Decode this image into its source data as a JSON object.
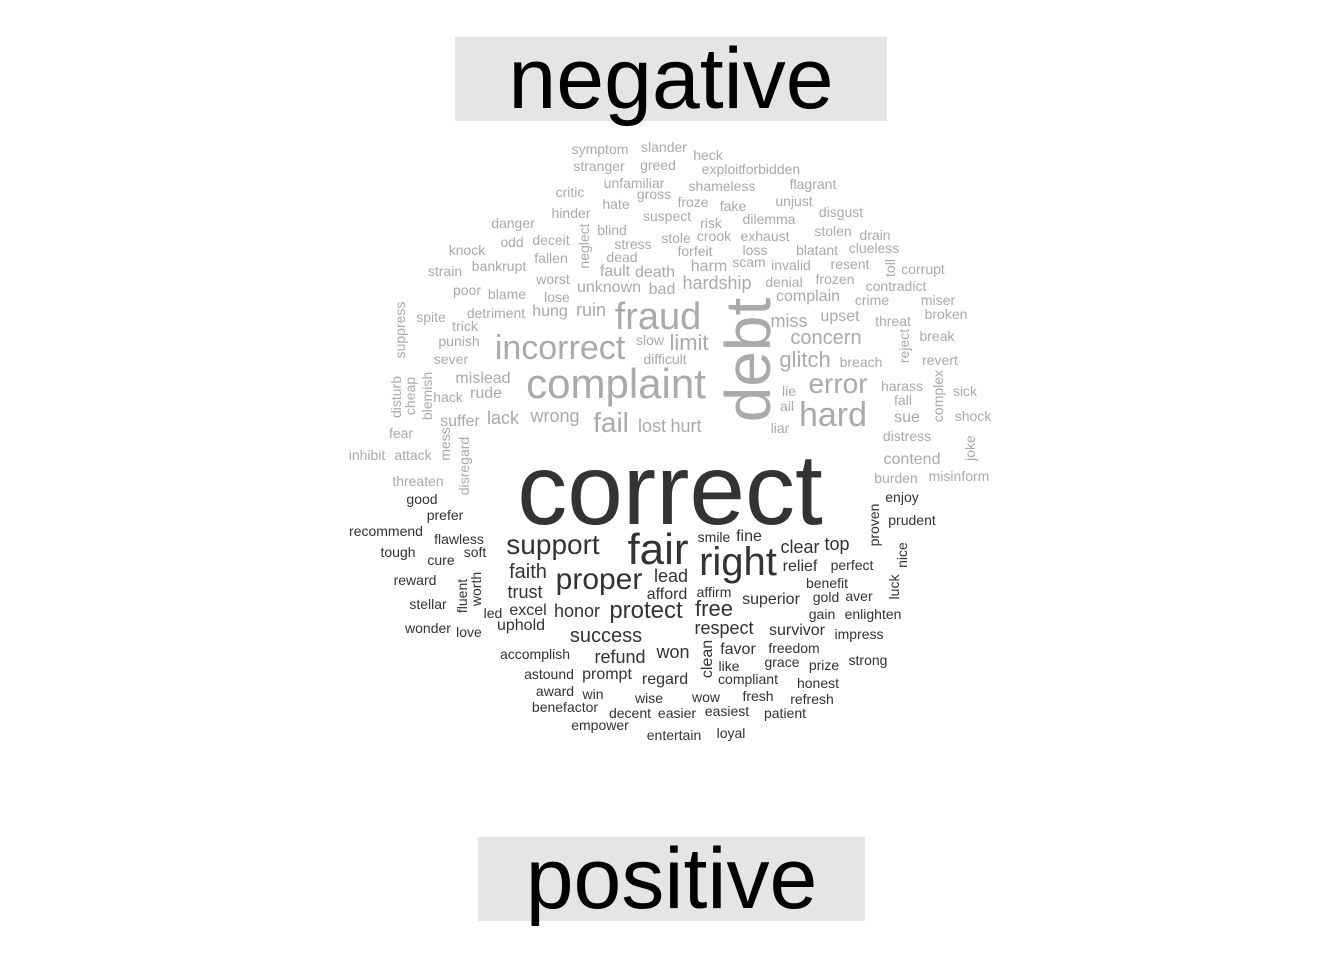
{
  "groups": {
    "negative": {
      "label": "negative",
      "color": "#aaaaaa"
    },
    "positive": {
      "label": "positive",
      "color": "#333333"
    }
  },
  "words": [
    {
      "text": "symptom",
      "group": "negative",
      "size": 1
    },
    {
      "text": "slander",
      "group": "negative",
      "size": 1
    },
    {
      "text": "heck",
      "group": "negative",
      "size": 1
    },
    {
      "text": "stranger",
      "group": "negative",
      "size": 1
    },
    {
      "text": "greed",
      "group": "negative",
      "size": 1
    },
    {
      "text": "exploit",
      "group": "negative",
      "size": 1
    },
    {
      "text": "forbidden",
      "group": "negative",
      "size": 1
    },
    {
      "text": "unfamiliar",
      "group": "negative",
      "size": 1
    },
    {
      "text": "shameless",
      "group": "negative",
      "size": 1
    },
    {
      "text": "flagrant",
      "group": "negative",
      "size": 1
    },
    {
      "text": "critic",
      "group": "negative",
      "size": 1
    },
    {
      "text": "gross",
      "group": "negative",
      "size": 1
    },
    {
      "text": "hate",
      "group": "negative",
      "size": 1
    },
    {
      "text": "froze",
      "group": "negative",
      "size": 1
    },
    {
      "text": "fake",
      "group": "negative",
      "size": 1
    },
    {
      "text": "unjust",
      "group": "negative",
      "size": 1
    },
    {
      "text": "hinder",
      "group": "negative",
      "size": 1
    },
    {
      "text": "suspect",
      "group": "negative",
      "size": 1
    },
    {
      "text": "disgust",
      "group": "negative",
      "size": 1
    },
    {
      "text": "danger",
      "group": "negative",
      "size": 1
    },
    {
      "text": "risk",
      "group": "negative",
      "size": 1
    },
    {
      "text": "dilemma",
      "group": "negative",
      "size": 1
    },
    {
      "text": "blind",
      "group": "negative",
      "size": 1
    },
    {
      "text": "stolen",
      "group": "negative",
      "size": 1
    },
    {
      "text": "odd",
      "group": "negative",
      "size": 1
    },
    {
      "text": "deceit",
      "group": "negative",
      "size": 1
    },
    {
      "text": "neglect",
      "group": "negative",
      "size": 1,
      "v": true
    },
    {
      "text": "stole",
      "group": "negative",
      "size": 1
    },
    {
      "text": "crook",
      "group": "negative",
      "size": 1
    },
    {
      "text": "exhaust",
      "group": "negative",
      "size": 1
    },
    {
      "text": "drain",
      "group": "negative",
      "size": 1
    },
    {
      "text": "knock",
      "group": "negative",
      "size": 1
    },
    {
      "text": "stress",
      "group": "negative",
      "size": 1
    },
    {
      "text": "forfeit",
      "group": "negative",
      "size": 1
    },
    {
      "text": "loss",
      "group": "negative",
      "size": 1
    },
    {
      "text": "blatant",
      "group": "negative",
      "size": 1
    },
    {
      "text": "clueless",
      "group": "negative",
      "size": 1
    },
    {
      "text": "fallen",
      "group": "negative",
      "size": 1
    },
    {
      "text": "dead",
      "group": "negative",
      "size": 1
    },
    {
      "text": "scam",
      "group": "negative",
      "size": 1
    },
    {
      "text": "invalid",
      "group": "negative",
      "size": 1
    },
    {
      "text": "resent",
      "group": "negative",
      "size": 1
    },
    {
      "text": "toll",
      "group": "negative",
      "size": 1,
      "v": true
    },
    {
      "text": "corrupt",
      "group": "negative",
      "size": 1
    },
    {
      "text": "bankrupt",
      "group": "negative",
      "size": 1
    },
    {
      "text": "harm",
      "group": "negative",
      "size": 2
    },
    {
      "text": "strain",
      "group": "negative",
      "size": 1
    },
    {
      "text": "fault",
      "group": "negative",
      "size": 2
    },
    {
      "text": "death",
      "group": "negative",
      "size": 2
    },
    {
      "text": "worst",
      "group": "negative",
      "size": 1
    },
    {
      "text": "denial",
      "group": "negative",
      "size": 1
    },
    {
      "text": "frozen",
      "group": "negative",
      "size": 1
    },
    {
      "text": "unknown",
      "group": "negative",
      "size": 2
    },
    {
      "text": "hardship",
      "group": "negative",
      "size": 2
    },
    {
      "text": "contradict",
      "group": "negative",
      "size": 1
    },
    {
      "text": "poor",
      "group": "negative",
      "size": 1
    },
    {
      "text": "blame",
      "group": "negative",
      "size": 1
    },
    {
      "text": "bad",
      "group": "negative",
      "size": 2
    },
    {
      "text": "lose",
      "group": "negative",
      "size": 1
    },
    {
      "text": "complain",
      "group": "negative",
      "size": 2
    },
    {
      "text": "crime",
      "group": "negative",
      "size": 1
    },
    {
      "text": "miser",
      "group": "negative",
      "size": 1
    },
    {
      "text": "suppress",
      "group": "negative",
      "size": 1,
      "v": true
    },
    {
      "text": "detriment",
      "group": "negative",
      "size": 1
    },
    {
      "text": "hung",
      "group": "negative",
      "size": 2
    },
    {
      "text": "ruin",
      "group": "negative",
      "size": 2
    },
    {
      "text": "fraud",
      "group": "negative",
      "size": 5
    },
    {
      "text": "broken",
      "group": "negative",
      "size": 1
    },
    {
      "text": "spite",
      "group": "negative",
      "size": 1
    },
    {
      "text": "trick",
      "group": "negative",
      "size": 1
    },
    {
      "text": "upset",
      "group": "negative",
      "size": 2
    },
    {
      "text": "threat",
      "group": "negative",
      "size": 1
    },
    {
      "text": "miss",
      "group": "negative",
      "size": 2
    },
    {
      "text": "debt",
      "group": "negative",
      "size": 7,
      "v": true
    },
    {
      "text": "break",
      "group": "negative",
      "size": 1
    },
    {
      "text": "punish",
      "group": "negative",
      "size": 1
    },
    {
      "text": "incorrect",
      "group": "negative",
      "size": 5
    },
    {
      "text": "concern",
      "group": "negative",
      "size": 3
    },
    {
      "text": "reject",
      "group": "negative",
      "size": 1,
      "v": true
    },
    {
      "text": "slow",
      "group": "negative",
      "size": 1
    },
    {
      "text": "limit",
      "group": "negative",
      "size": 3
    },
    {
      "text": "sever",
      "group": "negative",
      "size": 1
    },
    {
      "text": "difficult",
      "group": "negative",
      "size": 1
    },
    {
      "text": "glitch",
      "group": "negative",
      "size": 3
    },
    {
      "text": "breach",
      "group": "negative",
      "size": 1
    },
    {
      "text": "revert",
      "group": "negative",
      "size": 1
    },
    {
      "text": "blemish",
      "group": "negative",
      "size": 1,
      "v": true
    },
    {
      "text": "complaint",
      "group": "negative",
      "size": 6
    },
    {
      "text": "mislead",
      "group": "negative",
      "size": 1
    },
    {
      "text": "complex",
      "group": "negative",
      "size": 1,
      "v": true
    },
    {
      "text": "disturb",
      "group": "negative",
      "size": 1,
      "v": true
    },
    {
      "text": "cheap",
      "group": "negative",
      "size": 1,
      "v": true
    },
    {
      "text": "error",
      "group": "negative",
      "size": 4
    },
    {
      "text": "harass",
      "group": "negative",
      "size": 1
    },
    {
      "text": "sick",
      "group": "negative",
      "size": 1
    },
    {
      "text": "hack",
      "group": "negative",
      "size": 1
    },
    {
      "text": "rude",
      "group": "negative",
      "size": 1
    },
    {
      "text": "lie",
      "group": "negative",
      "size": 1
    },
    {
      "text": "fall",
      "group": "negative",
      "size": 1
    },
    {
      "text": "ail",
      "group": "negative",
      "size": 1
    },
    {
      "text": "hard",
      "group": "negative",
      "size": 5
    },
    {
      "text": "wrong",
      "group": "negative",
      "size": 2
    },
    {
      "text": "sue",
      "group": "negative",
      "size": 2
    },
    {
      "text": "shock",
      "group": "negative",
      "size": 1
    },
    {
      "text": "lack",
      "group": "negative",
      "size": 2
    },
    {
      "text": "suffer",
      "group": "negative",
      "size": 2
    },
    {
      "text": "fail",
      "group": "negative",
      "size": 4
    },
    {
      "text": "lost",
      "group": "negative",
      "size": 2
    },
    {
      "text": "hurt",
      "group": "negative",
      "size": 2
    },
    {
      "text": "liar",
      "group": "negative",
      "size": 1
    },
    {
      "text": "fear",
      "group": "negative",
      "size": 1
    },
    {
      "text": "mess",
      "group": "negative",
      "size": 1,
      "v": true
    },
    {
      "text": "distress",
      "group": "negative",
      "size": 1
    },
    {
      "text": "joke",
      "group": "negative",
      "size": 1,
      "v": true
    },
    {
      "text": "inhibit",
      "group": "negative",
      "size": 1
    },
    {
      "text": "attack",
      "group": "negative",
      "size": 1
    },
    {
      "text": "disregard",
      "group": "negative",
      "size": 1,
      "v": true
    },
    {
      "text": "contend",
      "group": "negative",
      "size": 1
    },
    {
      "text": "misinform",
      "group": "negative",
      "size": 1
    },
    {
      "text": "threaten",
      "group": "negative",
      "size": 1
    },
    {
      "text": "burden",
      "group": "negative",
      "size": 1
    },
    {
      "text": "correct",
      "group": "positive",
      "size": 10
    },
    {
      "text": "enjoy",
      "group": "positive",
      "size": 1
    },
    {
      "text": "good",
      "group": "positive",
      "size": 1
    },
    {
      "text": "prefer",
      "group": "positive",
      "size": 1
    },
    {
      "text": "proven",
      "group": "positive",
      "size": 1,
      "v": true
    },
    {
      "text": "prudent",
      "group": "positive",
      "size": 1
    },
    {
      "text": "recommend",
      "group": "positive",
      "size": 1
    },
    {
      "text": "flawless",
      "group": "positive",
      "size": 1
    },
    {
      "text": "smile",
      "group": "positive",
      "size": 1
    },
    {
      "text": "fine",
      "group": "positive",
      "size": 2
    },
    {
      "text": "support",
      "group": "positive",
      "size": 4
    },
    {
      "text": "fair",
      "group": "positive",
      "size": 6
    },
    {
      "text": "clear",
      "group": "positive",
      "size": 2
    },
    {
      "text": "top",
      "group": "positive",
      "size": 2
    },
    {
      "text": "tough",
      "group": "positive",
      "size": 1
    },
    {
      "text": "soft",
      "group": "positive",
      "size": 1
    },
    {
      "text": "nice",
      "group": "positive",
      "size": 1,
      "v": true
    },
    {
      "text": "cure",
      "group": "positive",
      "size": 1
    },
    {
      "text": "right",
      "group": "positive",
      "size": 6
    },
    {
      "text": "perfect",
      "group": "positive",
      "size": 1
    },
    {
      "text": "relief",
      "group": "positive",
      "size": 2
    },
    {
      "text": "faith",
      "group": "positive",
      "size": 3
    },
    {
      "text": "proper",
      "group": "positive",
      "size": 4
    },
    {
      "text": "lead",
      "group": "positive",
      "size": 2
    },
    {
      "text": "luck",
      "group": "positive",
      "size": 1,
      "v": true
    },
    {
      "text": "reward",
      "group": "positive",
      "size": 1
    },
    {
      "text": "benefit",
      "group": "positive",
      "size": 1
    },
    {
      "text": "fluent",
      "group": "positive",
      "size": 1,
      "v": true
    },
    {
      "text": "worth",
      "group": "positive",
      "size": 1,
      "v": true
    },
    {
      "text": "trust",
      "group": "positive",
      "size": 2
    },
    {
      "text": "afford",
      "group": "positive",
      "size": 2
    },
    {
      "text": "affirm",
      "group": "positive",
      "size": 1
    },
    {
      "text": "gold",
      "group": "positive",
      "size": 1
    },
    {
      "text": "aver",
      "group": "positive",
      "size": 1
    },
    {
      "text": "stellar",
      "group": "positive",
      "size": 1
    },
    {
      "text": "superior",
      "group": "positive",
      "size": 2
    },
    {
      "text": "free",
      "group": "positive",
      "size": 3
    },
    {
      "text": "led",
      "group": "positive",
      "size": 1
    },
    {
      "text": "excel",
      "group": "positive",
      "size": 2
    },
    {
      "text": "honor",
      "group": "positive",
      "size": 2
    },
    {
      "text": "protect",
      "group": "positive",
      "size": 4
    },
    {
      "text": "gain",
      "group": "positive",
      "size": 1
    },
    {
      "text": "enlighten",
      "group": "positive",
      "size": 1
    },
    {
      "text": "wonder",
      "group": "positive",
      "size": 1
    },
    {
      "text": "love",
      "group": "positive",
      "size": 1
    },
    {
      "text": "uphold",
      "group": "positive",
      "size": 2
    },
    {
      "text": "respect",
      "group": "positive",
      "size": 2
    },
    {
      "text": "survivor",
      "group": "positive",
      "size": 2
    },
    {
      "text": "impress",
      "group": "positive",
      "size": 1
    },
    {
      "text": "success",
      "group": "positive",
      "size": 3
    },
    {
      "text": "favor",
      "group": "positive",
      "size": 2
    },
    {
      "text": "freedom",
      "group": "positive",
      "size": 1
    },
    {
      "text": "clean",
      "group": "positive",
      "size": 2,
      "v": true
    },
    {
      "text": "accomplish",
      "group": "positive",
      "size": 1
    },
    {
      "text": "refund",
      "group": "positive",
      "size": 2
    },
    {
      "text": "won",
      "group": "positive",
      "size": 2
    },
    {
      "text": "grace",
      "group": "positive",
      "size": 1
    },
    {
      "text": "strong",
      "group": "positive",
      "size": 1
    },
    {
      "text": "like",
      "group": "positive",
      "size": 1
    },
    {
      "text": "prize",
      "group": "positive",
      "size": 1
    },
    {
      "text": "astound",
      "group": "positive",
      "size": 1
    },
    {
      "text": "prompt",
      "group": "positive",
      "size": 2
    },
    {
      "text": "regard",
      "group": "positive",
      "size": 2
    },
    {
      "text": "compliant",
      "group": "positive",
      "size": 1
    },
    {
      "text": "honest",
      "group": "positive",
      "size": 1
    },
    {
      "text": "award",
      "group": "positive",
      "size": 1
    },
    {
      "text": "win",
      "group": "positive",
      "size": 1
    },
    {
      "text": "wise",
      "group": "positive",
      "size": 1
    },
    {
      "text": "wow",
      "group": "positive",
      "size": 1
    },
    {
      "text": "fresh",
      "group": "positive",
      "size": 1
    },
    {
      "text": "refresh",
      "group": "positive",
      "size": 1
    },
    {
      "text": "benefactor",
      "group": "positive",
      "size": 1
    },
    {
      "text": "decent",
      "group": "positive",
      "size": 1
    },
    {
      "text": "easier",
      "group": "positive",
      "size": 1
    },
    {
      "text": "easiest",
      "group": "positive",
      "size": 1
    },
    {
      "text": "patient",
      "group": "positive",
      "size": 1
    },
    {
      "text": "empower",
      "group": "positive",
      "size": 1
    },
    {
      "text": "entertain",
      "group": "positive",
      "size": 1
    },
    {
      "text": "loyal",
      "group": "positive",
      "size": 1
    }
  ]
}
